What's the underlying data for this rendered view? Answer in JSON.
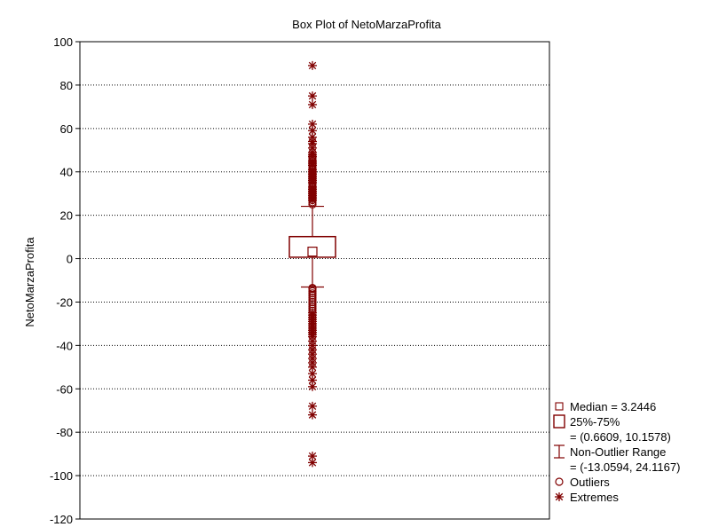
{
  "chart_data": {
    "type": "box",
    "title": "Box Plot of NetoMarzaProfita",
    "ylabel": "NetoMarzaProfita",
    "xlabel": "",
    "ylim": [
      -120,
      100
    ],
    "yticks": [
      100,
      80,
      60,
      40,
      20,
      0,
      -20,
      -40,
      -60,
      -80,
      -100,
      -120
    ],
    "grid": true,
    "legend_position": "bottom-right",
    "color": "#800000",
    "box": {
      "median": 3.2446,
      "q1": 0.6609,
      "q3": 10.1578,
      "whisker_low": -13.0594,
      "whisker_high": 24.1167
    },
    "outliers": [
      25,
      26,
      27,
      28,
      29,
      30,
      31,
      32,
      33,
      34,
      35,
      36,
      37,
      38,
      39,
      40,
      41,
      42,
      43,
      44,
      45,
      46,
      47,
      -13.5,
      -14,
      -15,
      -16,
      -17,
      -18,
      -19,
      -20,
      -21,
      -22,
      -23,
      -24
    ],
    "extremes": [
      89,
      75,
      71,
      62,
      59,
      56,
      54,
      53,
      51,
      49,
      48,
      47,
      45,
      44,
      43,
      41,
      40,
      39,
      38,
      37,
      36,
      35,
      33,
      32,
      31,
      30,
      29,
      28,
      27,
      -25,
      -26,
      -27,
      -28,
      -29,
      -30,
      -31,
      -32,
      -33,
      -34,
      -35,
      -36,
      -38,
      -40,
      -42,
      -44,
      -46,
      -48,
      -50,
      -53,
      -56,
      -59,
      -68,
      -72,
      -91,
      -94
    ],
    "legend": [
      {
        "symbol": "median",
        "line1": "Median = 3.2446",
        "line2": ""
      },
      {
        "symbol": "box",
        "line1": "25%-75%",
        "line2": "= (0.6609, 10.1578)"
      },
      {
        "symbol": "whisker",
        "line1": "Non-Outlier Range",
        "line2": "= (-13.0594, 24.1167)"
      },
      {
        "symbol": "outlier",
        "line1": "Outliers",
        "line2": ""
      },
      {
        "symbol": "extreme",
        "line1": "Extremes",
        "line2": ""
      }
    ]
  }
}
